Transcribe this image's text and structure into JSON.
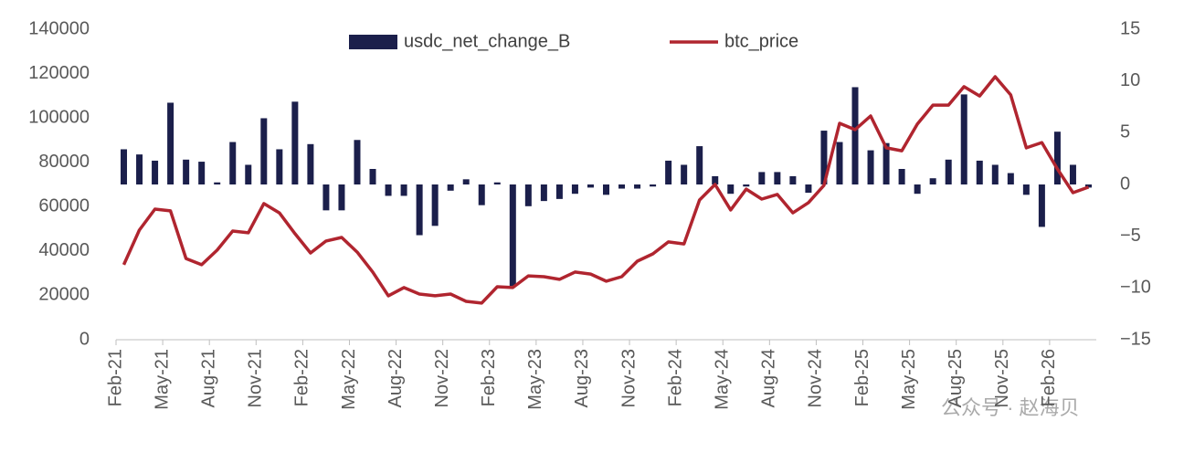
{
  "chart_data": {
    "type": "combo",
    "categories": [
      "Feb-21",
      null,
      null,
      "May-21",
      null,
      null,
      "Aug-21",
      null,
      null,
      "Nov-21",
      null,
      null,
      "Feb-22",
      null,
      null,
      "May-22",
      null,
      null,
      "Aug-22",
      null,
      null,
      "Nov-22",
      null,
      null,
      "Feb-23",
      null,
      null,
      "May-23",
      null,
      null,
      "Aug-23",
      null,
      null,
      "Nov-23",
      null,
      null,
      "Feb-24",
      null,
      null,
      "May-24",
      null,
      null,
      "Aug-24",
      null,
      null,
      "Nov-24",
      null,
      null,
      "Feb-25",
      null,
      null,
      "May-25",
      null,
      null,
      "Aug-25",
      null,
      null,
      "Nov-25",
      null,
      null,
      "Feb-26",
      null,
      null
    ],
    "series": [
      {
        "name": "usdc_net_change_B",
        "type": "bar",
        "axis": "y2",
        "color": "#1b1f4b",
        "values": [
          3.4,
          2.9,
          2.3,
          7.9,
          2.4,
          2.2,
          0.2,
          4.1,
          1.9,
          6.4,
          3.4,
          8.0,
          3.9,
          -2.5,
          -2.5,
          4.3,
          1.5,
          -1.1,
          -1.1,
          -4.9,
          -4.0,
          -0.6,
          0.5,
          -2.0,
          0.2,
          -9.8,
          -2.1,
          -1.6,
          -1.4,
          -0.9,
          -0.3,
          -1.0,
          -0.4,
          -0.4,
          -0.2,
          2.3,
          1.9,
          3.7,
          0.8,
          -0.9,
          -0.2,
          1.2,
          1.2,
          0.8,
          -0.8,
          5.2,
          4.1,
          9.4,
          3.3,
          4.0,
          1.5,
          -0.9,
          0.6,
          2.4,
          8.7,
          2.3,
          1.9,
          1.1,
          -1.0,
          -4.1,
          5.1,
          1.9,
          -0.3
        ]
      },
      {
        "name": "btc_price",
        "type": "line",
        "color": "#b0252f",
        "values": [
          33800,
          49400,
          58900,
          58100,
          36600,
          33800,
          40400,
          49000,
          48200,
          61400,
          57200,
          47800,
          39100,
          44500,
          46100,
          39500,
          30500,
          19800,
          23500,
          20600,
          19800,
          20600,
          17300,
          16500,
          23900,
          23500,
          28800,
          28400,
          27200,
          30500,
          29600,
          26400,
          28400,
          35400,
          38700,
          44100,
          43200,
          63000,
          70000,
          58500,
          67900,
          63400,
          65500,
          57200,
          61800,
          69600,
          97600,
          94700,
          100900,
          86500,
          85200,
          97200,
          105800,
          105800,
          114100,
          109900,
          118600,
          110400,
          86500,
          88900,
          77000,
          66300,
          68800
        ]
      }
    ],
    "ylim": [
      0,
      140000
    ],
    "yticks": [
      0,
      20000,
      40000,
      60000,
      80000,
      100000,
      120000,
      140000
    ],
    "y2lim": [
      -15,
      15
    ],
    "y2ticks": [
      {
        "value": -15,
        "label": "−15"
      },
      {
        "value": -10,
        "label": "−10"
      },
      {
        "value": -5,
        "label": "−5"
      },
      0,
      5,
      10,
      15
    ],
    "legend": "top",
    "watermark": "公众号 · 赵海贝"
  }
}
